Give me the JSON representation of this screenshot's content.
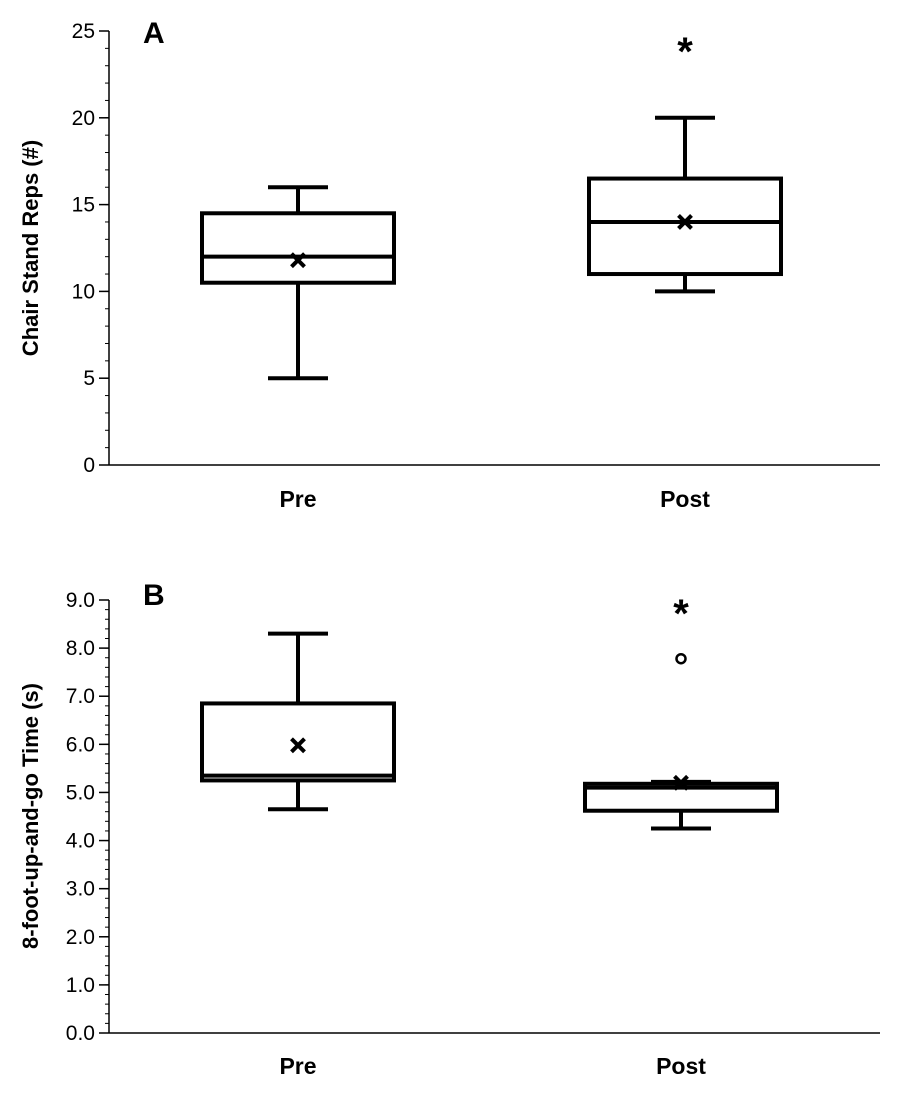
{
  "chart_data": [
    {
      "type": "box",
      "panel": "A",
      "ylabel": "Chair Stand Reps (#)",
      "ylim": [
        0,
        25
      ],
      "yticks": [
        0,
        5,
        10,
        15,
        20,
        25
      ],
      "tick_decimals": 0,
      "minor_step": 1,
      "categories": [
        "Pre",
        "Post"
      ],
      "boxes": [
        {
          "category": "Pre",
          "whisker_low": 5,
          "q1": 10.5,
          "median": 12,
          "q3": 14.5,
          "whisker_high": 16,
          "mean": 11.8,
          "outliers": []
        },
        {
          "category": "Post",
          "whisker_low": 10,
          "q1": 11,
          "median": 14,
          "q3": 16.5,
          "whisker_high": 20,
          "mean": 14,
          "outliers": []
        }
      ],
      "significance": [
        {
          "category": "Post",
          "symbol": "*",
          "y": 24.2
        }
      ]
    },
    {
      "type": "box",
      "panel": "B",
      "ylabel": "8-foot-up-and-go Time (s)",
      "ylim": [
        0,
        9
      ],
      "yticks": [
        0,
        1,
        2,
        3,
        4,
        5,
        6,
        7,
        8,
        9
      ],
      "tick_decimals": 1,
      "minor_step": 0.2,
      "categories": [
        "Pre",
        "Post"
      ],
      "boxes": [
        {
          "category": "Pre",
          "whisker_low": 4.65,
          "q1": 5.25,
          "median": 5.35,
          "q3": 6.85,
          "whisker_high": 8.3,
          "mean": 5.98,
          "outliers": []
        },
        {
          "category": "Post",
          "whisker_low": 4.25,
          "q1": 4.62,
          "median": 5.1,
          "q3": 5.18,
          "whisker_high": 5.22,
          "mean": 5.2,
          "outliers": [
            7.78
          ]
        }
      ],
      "significance": [
        {
          "category": "Post",
          "symbol": "*",
          "y": 8.85
        }
      ]
    }
  ]
}
